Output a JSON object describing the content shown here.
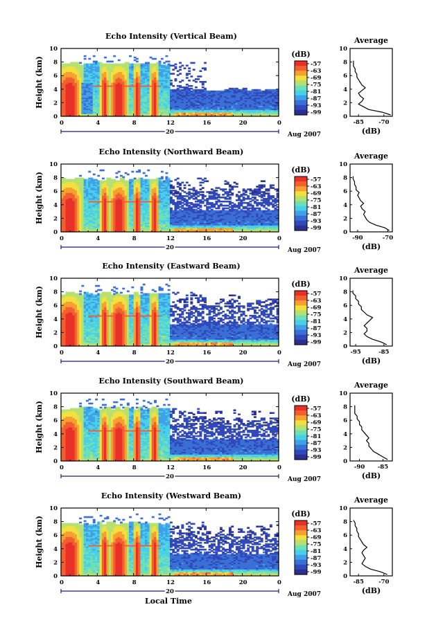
{
  "chart_data": [
    {
      "type": "heatmap",
      "title": "Echo Intensity (Vertical Beam)",
      "ylabel": "Height (km)",
      "xticks": [
        "0",
        "4",
        "8",
        "12",
        "16",
        "20",
        "0"
      ],
      "xlim": [
        0,
        24
      ],
      "yticks": [
        "0",
        "2",
        "4",
        "6",
        "8",
        "10"
      ],
      "ylim": [
        0,
        10
      ],
      "date_label": "20",
      "month_label": "Aug 2007",
      "colorbar": {
        "unit": "(dB)",
        "ticks": [
          "-57",
          "-63",
          "-69",
          "-75",
          "-81",
          "-87",
          "-93",
          "-99"
        ]
      },
      "profile": {
        "title": "Average",
        "xlabel": "(dB)",
        "xticks": [
          "-85",
          "-70"
        ],
        "xlim": [
          -90,
          -65
        ],
        "yticks": [
          "0",
          "2",
          "4",
          "6",
          "8",
          "10"
        ],
        "heights": [
          0.2,
          0.6,
          1.0,
          1.4,
          1.8,
          2.2,
          2.6,
          3.0,
          3.4,
          3.8,
          4.2,
          4.6,
          5.0,
          5.4,
          5.8,
          6.2,
          6.6,
          7.0,
          7.4,
          7.8,
          8.2
        ],
        "values": [
          -66,
          -71,
          -79,
          -82,
          -85,
          -83,
          -82,
          -84,
          -85,
          -83,
          -81,
          -83,
          -84,
          -85,
          -86,
          -86,
          -87,
          -87,
          -88,
          -88,
          -88
        ]
      }
    },
    {
      "type": "heatmap",
      "title": "Echo Intensity (Northward Beam)",
      "ylabel": "Height (km)",
      "xticks": [
        "0",
        "4",
        "8",
        "12",
        "16",
        "20",
        "0"
      ],
      "xlim": [
        0,
        24
      ],
      "yticks": [
        "0",
        "2",
        "4",
        "6",
        "8",
        "10"
      ],
      "ylim": [
        0,
        10
      ],
      "date_label": "20",
      "month_label": "Aug 2007",
      "colorbar": {
        "unit": "(dB)",
        "ticks": [
          "-57",
          "-63",
          "-69",
          "-75",
          "-81",
          "-87",
          "-93",
          "-99"
        ]
      },
      "profile": {
        "title": "Average",
        "xlabel": "(dB)",
        "xticks": [
          "-90",
          "-70"
        ],
        "xlim": [
          -95,
          -67
        ],
        "yticks": [
          "0",
          "2",
          "4",
          "6",
          "8",
          "10"
        ],
        "heights": [
          0.2,
          0.6,
          1.0,
          1.4,
          1.8,
          2.2,
          2.6,
          3.0,
          3.4,
          3.8,
          4.2,
          4.6,
          5.0,
          5.4,
          5.8,
          6.2,
          6.6,
          7.0,
          7.4,
          7.8,
          8.2
        ],
        "values": [
          -69,
          -72,
          -78,
          -82,
          -84,
          -85,
          -86,
          -85,
          -87,
          -88,
          -86,
          -88,
          -89,
          -90,
          -89,
          -91,
          -91,
          -92,
          -92,
          -93,
          -93
        ]
      }
    },
    {
      "type": "heatmap",
      "title": "Echo Intensity (Eastward Beam)",
      "ylabel": "Height (km)",
      "xticks": [
        "0",
        "4",
        "8",
        "12",
        "16",
        "20",
        "0"
      ],
      "xlim": [
        0,
        24
      ],
      "yticks": [
        "0",
        "2",
        "4",
        "6",
        "8",
        "10"
      ],
      "ylim": [
        0,
        10
      ],
      "date_label": "20",
      "month_label": "Aug 2007",
      "colorbar": {
        "unit": "(dB)",
        "ticks": [
          "-57",
          "-63",
          "-69",
          "-75",
          "-81",
          "-87",
          "-93",
          "-99"
        ]
      },
      "profile": {
        "title": "Average",
        "xlabel": "(dB)",
        "xticks": [
          "-95",
          "-85"
        ],
        "xlim": [
          -97,
          -82
        ],
        "yticks": [
          "0",
          "2",
          "4",
          "6",
          "8",
          "10"
        ],
        "heights": [
          0.2,
          0.6,
          1.0,
          1.4,
          1.8,
          2.2,
          2.6,
          3.0,
          3.4,
          3.8,
          4.2,
          4.6,
          5.0,
          5.4,
          5.8,
          6.2,
          6.6,
          7.0,
          7.4,
          7.8,
          8.2
        ],
        "values": [
          -84,
          -86,
          -89,
          -91,
          -92,
          -91,
          -91,
          -92,
          -91,
          -90,
          -89,
          -91,
          -92,
          -93,
          -93,
          -94,
          -94,
          -95,
          -95,
          -96,
          -96
        ]
      }
    },
    {
      "type": "heatmap",
      "title": "Echo Intensity (Southward Beam)",
      "ylabel": "Height (km)",
      "xticks": [
        "0",
        "4",
        "8",
        "12",
        "16",
        "20",
        "0"
      ],
      "xlim": [
        0,
        24
      ],
      "yticks": [
        "0",
        "2",
        "4",
        "6",
        "8",
        "10"
      ],
      "ylim": [
        0,
        10
      ],
      "date_label": "20",
      "month_label": "Aug 2007",
      "colorbar": {
        "unit": "(dB)",
        "ticks": [
          "-57",
          "-63",
          "-69",
          "-75",
          "-81",
          "-87",
          "-93",
          "-99"
        ]
      },
      "profile": {
        "title": "Average",
        "xlabel": "(dB)",
        "xticks": [
          "-90",
          "-85"
        ],
        "xlim": [
          -92,
          -83
        ],
        "yticks": [
          "0",
          "2",
          "4",
          "6",
          "8",
          "10"
        ],
        "heights": [
          0.2,
          0.6,
          1.0,
          1.4,
          1.8,
          2.2,
          2.6,
          3.0,
          3.4,
          3.8,
          4.2,
          4.6,
          5.0,
          5.4,
          5.8,
          6.2,
          6.6,
          7.0,
          7.4,
          7.8,
          8.2
        ],
        "values": [
          -84,
          -85,
          -86,
          -87,
          -87.5,
          -88,
          -88,
          -88.5,
          -88,
          -88.5,
          -89,
          -89.5,
          -89.5,
          -90,
          -90,
          -90.5,
          -90.5,
          -91,
          -91,
          -91,
          -91
        ]
      }
    },
    {
      "type": "heatmap",
      "title": "Echo Intensity (Westward Beam)",
      "ylabel": "Height (km)",
      "xticks": [
        "0",
        "4",
        "8",
        "12",
        "16",
        "20",
        "0"
      ],
      "xlim": [
        0,
        24
      ],
      "yticks": [
        "0",
        "2",
        "4",
        "6",
        "8",
        "10"
      ],
      "ylim": [
        0,
        10
      ],
      "date_label": "20",
      "month_label": "Aug 2007",
      "xlabel": "Local Time",
      "colorbar": {
        "unit": "(dB)",
        "ticks": [
          "-57",
          "-63",
          "-69",
          "-75",
          "-81",
          "-87",
          "-93",
          "-99"
        ]
      },
      "profile": {
        "title": "Average",
        "xlabel": "(dB)",
        "xticks": [
          "-85",
          "-70"
        ],
        "xlim": [
          -90,
          -65
        ],
        "yticks": [
          "0",
          "2",
          "4",
          "6",
          "8",
          "10"
        ],
        "heights": [
          0.2,
          0.6,
          1.0,
          1.4,
          1.8,
          2.2,
          2.6,
          3.0,
          3.4,
          3.8,
          4.2,
          4.6,
          5.0,
          5.4,
          5.8,
          6.2,
          6.6,
          7.0,
          7.4,
          7.8,
          8.2
        ],
        "values": [
          -68,
          -72,
          -78,
          -81,
          -83,
          -82,
          -81,
          -82,
          -83,
          -82,
          -80,
          -82,
          -83,
          -84,
          -85,
          -85,
          -86,
          -86,
          -87,
          -87,
          -88
        ]
      }
    }
  ],
  "colors": {
    "colorscale": [
      "#2b2f8f",
      "#3048b8",
      "#3a6fd6",
      "#40a0e8",
      "#49d0e8",
      "#6ee0b8",
      "#b6e070",
      "#f0e040",
      "#f7a030",
      "#f06030",
      "#e83028"
    ],
    "axis": "#000000",
    "date_line": "#1a1a8a"
  }
}
